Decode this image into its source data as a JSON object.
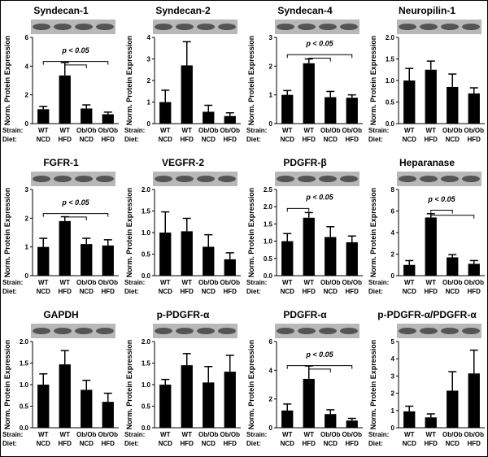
{
  "chart_data": [
    {
      "type": "bar",
      "title": "Syndecan-1",
      "ylabel": "Norm. Protein Expression",
      "color": "#000000",
      "strain_label": "Strain:",
      "diet_label": "Diet:",
      "strain": [
        "WT",
        "WT",
        "Ob/Ob",
        "Ob/Ob"
      ],
      "diet": [
        "NCD",
        "HFD",
        "NCD",
        "HFD"
      ],
      "values": [
        1.0,
        3.35,
        1.05,
        0.65
      ],
      "errors": [
        0.2,
        0.9,
        0.25,
        0.15
      ],
      "ylim": [
        0,
        6
      ],
      "yticks": [
        0,
        2,
        4,
        6
      ],
      "annotation": "p < 0.05"
    },
    {
      "type": "bar",
      "title": "Syndecan-2",
      "ylabel": "Norm. Protein Expression",
      "color": "#000000",
      "strain_label": "Strain:",
      "diet_label": "Diet:",
      "strain": [
        "WT",
        "WT",
        "Ob/Ob",
        "Ob/Ob"
      ],
      "diet": [
        "NCD",
        "HFD",
        "NCD",
        "HFD"
      ],
      "values": [
        1.0,
        2.7,
        0.55,
        0.35
      ],
      "errors": [
        0.55,
        1.1,
        0.3,
        0.15
      ],
      "ylim": [
        0,
        4
      ],
      "yticks": [
        0,
        1,
        2,
        3,
        4
      ]
    },
    {
      "type": "bar",
      "title": "Syndecan-4",
      "ylabel": "Norm. Protein Expression",
      "color": "#000000",
      "strain_label": "Strain:",
      "diet_label": "Diet:",
      "strain": [
        "WT",
        "WT",
        "Ob/Ob",
        "Ob/Ob"
      ],
      "diet": [
        "NCD",
        "HFD",
        "NCD",
        "HFD"
      ],
      "values": [
        1.0,
        2.1,
        0.92,
        0.9
      ],
      "errors": [
        0.15,
        0.15,
        0.2,
        0.1
      ],
      "ylim": [
        0,
        3
      ],
      "yticks": [
        0,
        1,
        2,
        3
      ],
      "annotation": "p < 0.05"
    },
    {
      "type": "bar",
      "title": "Neuropilin-1",
      "ylabel": "Norm. Protein Expression",
      "color": "#000000",
      "strain_label": "Strain:",
      "diet_label": "Diet:",
      "strain": [
        "WT",
        "WT",
        "Ob/Ob",
        "Ob/Ob"
      ],
      "diet": [
        "NCD",
        "HFD",
        "NCD",
        "HFD"
      ],
      "values": [
        1.0,
        1.25,
        0.85,
        0.7
      ],
      "errors": [
        0.28,
        0.2,
        0.3,
        0.13
      ],
      "ylim": [
        0,
        2
      ],
      "yticks": [
        {
          "value": 0,
          "label": "0.0"
        },
        0.5,
        {
          "value": 1,
          "label": "1.0"
        },
        1.5,
        {
          "value": 2,
          "label": "2.0"
        }
      ]
    },
    {
      "type": "bar",
      "title": "FGFR-1",
      "ylabel": "Norm. Protein Expression",
      "color": "#000000",
      "strain_label": "Strain:",
      "diet_label": "Diet:",
      "strain": [
        "WT",
        "WT",
        "Ob/Ob",
        "Ob/Ob"
      ],
      "diet": [
        "NCD",
        "HFD",
        "NCD",
        "HFD"
      ],
      "values": [
        1.0,
        1.9,
        1.1,
        1.05
      ],
      "errors": [
        0.3,
        0.15,
        0.2,
        0.2
      ],
      "ylim": [
        0,
        3
      ],
      "yticks": [
        0,
        1,
        2,
        3
      ],
      "annotation": "p < 0.05"
    },
    {
      "type": "bar",
      "title": "VEGFR-2",
      "ylabel": "Norm. Protein Expression",
      "color": "#000000",
      "strain_label": "Strain:",
      "diet_label": "Diet:",
      "strain": [
        "WT",
        "WT",
        "Ob/Ob",
        "Ob/Ob"
      ],
      "diet": [
        "NCD",
        "HFD",
        "NCD",
        "HFD"
      ],
      "values": [
        1.0,
        1.03,
        0.67,
        0.38
      ],
      "errors": [
        0.48,
        0.3,
        0.28,
        0.15
      ],
      "ylim": [
        0,
        2
      ],
      "yticks": [
        {
          "value": 0,
          "label": "0.0"
        },
        0.5,
        {
          "value": 1,
          "label": "1.0"
        },
        1.5,
        {
          "value": 2,
          "label": "2.0"
        }
      ]
    },
    {
      "type": "bar",
      "title": "PDGFR-β",
      "ylabel": "Norm. Protein Expression",
      "color": "#000000",
      "strain_label": "Strain:",
      "diet_label": "Diet:",
      "strain": [
        "WT",
        "WT",
        "Ob/Ob",
        "Ob/Ob"
      ],
      "diet": [
        "NCD",
        "HFD",
        "NCD",
        "HFD"
      ],
      "values": [
        1.0,
        1.68,
        1.12,
        0.97
      ],
      "errors": [
        0.22,
        0.15,
        0.3,
        0.18
      ],
      "ylim": [
        0,
        2.5
      ],
      "yticks": [
        {
          "value": 0,
          "label": "0.0"
        },
        0.5,
        {
          "value": 1,
          "label": "1.0"
        },
        1.5,
        {
          "value": 2,
          "label": "2.0"
        },
        2.5
      ],
      "annotation": "p < 0.05"
    },
    {
      "type": "bar",
      "title": "Heparanase",
      "ylabel": "Norm. Protein Expression",
      "color": "#000000",
      "strain_label": "Strain:",
      "diet_label": "Diet:",
      "strain": [
        "WT",
        "WT",
        "Ob/Ob",
        "Ob/Ob"
      ],
      "diet": [
        "NCD",
        "HFD",
        "NCD",
        "HFD"
      ],
      "values": [
        1.0,
        5.4,
        1.7,
        1.1
      ],
      "errors": [
        0.4,
        0.35,
        0.25,
        0.3
      ],
      "ylim": [
        0,
        8
      ],
      "yticks": [
        0,
        2,
        4,
        6,
        8
      ],
      "annotation": "p < 0.05"
    },
    {
      "type": "bar",
      "title": "GAPDH",
      "ylabel": "Norm. Protein Expression",
      "color": "#000000",
      "strain_label": "Strain:",
      "diet_label": "Diet:",
      "strain": [
        "WT",
        "WT",
        "Ob/Ob",
        "Ob/Ob"
      ],
      "diet": [
        "NCD",
        "HFD",
        "NCD",
        "HFD"
      ],
      "values": [
        1.0,
        1.47,
        0.88,
        0.6
      ],
      "errors": [
        0.25,
        0.32,
        0.22,
        0.2
      ],
      "ylim": [
        0,
        2
      ],
      "yticks": [
        {
          "value": 0,
          "label": "0.0"
        },
        0.5,
        {
          "value": 1,
          "label": "1.0"
        },
        1.5,
        {
          "value": 2,
          "label": "2.0"
        }
      ]
    },
    {
      "type": "bar",
      "title": "p-PDGFR-α",
      "ylabel": "Norm. Protein Expression",
      "color": "#000000",
      "strain_label": "Strain:",
      "diet_label": "Diet:",
      "strain": [
        "WT",
        "WT",
        "Ob/Ob",
        "Ob/Ob"
      ],
      "diet": [
        "NCD",
        "HFD",
        "NCD",
        "HFD"
      ],
      "values": [
        1.0,
        1.45,
        1.05,
        1.3
      ],
      "errors": [
        0.12,
        0.27,
        0.37,
        0.38
      ],
      "ylim": [
        0,
        2
      ],
      "yticks": [
        {
          "value": 0,
          "label": "0.0"
        },
        0.5,
        {
          "value": 1,
          "label": "1.0"
        },
        1.5,
        {
          "value": 2,
          "label": "2.0"
        }
      ]
    },
    {
      "type": "bar",
      "title": "PDGFR-α",
      "ylabel": "Norm. Protein Expression",
      "color": "#000000",
      "strain_label": "Strain:",
      "diet_label": "Diet:",
      "strain": [
        "WT",
        "WT",
        "Ob/Ob",
        "Ob/Ob"
      ],
      "diet": [
        "NCD",
        "HFD",
        "NCD",
        "HFD"
      ],
      "values": [
        1.2,
        3.4,
        0.95,
        0.5
      ],
      "errors": [
        0.45,
        0.9,
        0.3,
        0.15
      ],
      "ylim": [
        0,
        6
      ],
      "yticks": [
        0,
        2,
        4,
        6
      ],
      "annotation": "p < 0.05"
    },
    {
      "type": "bar",
      "title": "p-PDGFR-α/PDGFR-α",
      "ylabel": "Norm. Protein Expression",
      "color": "#000000",
      "strain_label": "Strain:",
      "diet_label": "Diet:",
      "strain": [
        "WT",
        "WT",
        "Ob/Ob",
        "Ob/Ob"
      ],
      "diet": [
        "NCD",
        "HFD",
        "NCD",
        "HFD"
      ],
      "values": [
        0.95,
        0.6,
        2.15,
        3.15
      ],
      "errors": [
        0.3,
        0.2,
        1.1,
        1.35
      ],
      "ylim": [
        0,
        5
      ],
      "yticks": [
        0,
        1,
        2,
        3,
        4,
        5
      ]
    }
  ]
}
